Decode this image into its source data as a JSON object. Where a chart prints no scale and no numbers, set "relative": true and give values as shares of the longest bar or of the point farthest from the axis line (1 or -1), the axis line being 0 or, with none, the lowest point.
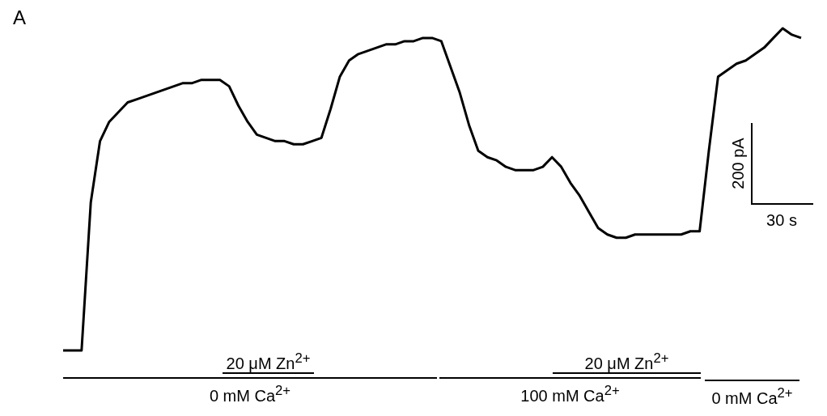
{
  "chart_data": {
    "type": "line",
    "title": "A",
    "relative": true,
    "marker": "none",
    "line_style": "solid",
    "categories": [
      null,
      null,
      null,
      null,
      null,
      null,
      null,
      null,
      null,
      null,
      null,
      null,
      null,
      null,
      null,
      null,
      null,
      null,
      null,
      null,
      null,
      null,
      null,
      null,
      null,
      null,
      null,
      null,
      null,
      null,
      null,
      null,
      null,
      null,
      null,
      null,
      null,
      null,
      null,
      null,
      null,
      null,
      null,
      null,
      null,
      null,
      null,
      null,
      null,
      null,
      null,
      null,
      null,
      null,
      null,
      null,
      null,
      null,
      null,
      null,
      null,
      null,
      null,
      null,
      null,
      null,
      null,
      null,
      null,
      null,
      null,
      null,
      null,
      null,
      null,
      null,
      null,
      null,
      null,
      null,
      null
    ],
    "series": [
      {
        "color": "#000000",
        "values": [
          0,
          0,
          0,
          0.46,
          0.65,
          0.71,
          0.74,
          0.77,
          0.78,
          0.79,
          0.8,
          0.81,
          0.82,
          0.83,
          0.83,
          0.84,
          0.84,
          0.84,
          0.82,
          0.76,
          0.71,
          0.67,
          0.66,
          0.65,
          0.65,
          0.64,
          0.64,
          0.65,
          0.66,
          0.75,
          0.85,
          0.9,
          0.92,
          0.93,
          0.94,
          0.95,
          0.95,
          0.96,
          0.96,
          0.97,
          0.97,
          0.96,
          0.88,
          0.8,
          0.7,
          0.62,
          0.6,
          0.59,
          0.57,
          0.56,
          0.56,
          0.56,
          0.57,
          0.6,
          0.57,
          0.52,
          0.48,
          0.43,
          0.38,
          0.36,
          0.35,
          0.35,
          0.36,
          0.36,
          0.36,
          0.36,
          0.36,
          0.36,
          0.37,
          0.37,
          0.62,
          0.85,
          0.87,
          0.89,
          0.9,
          0.92,
          0.94,
          0.97,
          1,
          0.98,
          0.97
        ]
      }
    ],
    "annotations": [
      "0 mM Ca$^{2+}$",
      "20 μM Zn$^{2+}$",
      "100 mM Ca$^{2+}$",
      "20 μM Zn$^{2+}$",
      "0 mM Ca$^{2+}$",
      "200 pA",
      "30 s"
    ]
  }
}
